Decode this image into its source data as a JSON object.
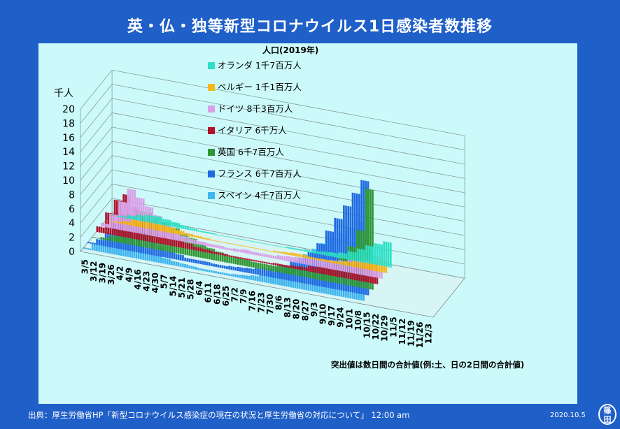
{
  "title": "英・仏・独等新型コロナウイルス1日感染者数推移",
  "footer": {
    "source": "出典：厚生労働省HP「新型コロナウイルス感染症の現在の状況と厚生労働省の対応について」 12:00 am",
    "date": "2020.10.5",
    "seal_top": "篠",
    "seal_bottom": "田"
  },
  "chart_data": {
    "type": "bar",
    "title": "英・仏・独等新型コロナウイルス1日感染者数推移",
    "ylabel": "千人",
    "ylim": [
      0,
      20
    ],
    "yticks": [
      0,
      2,
      4,
      6,
      8,
      10,
      12,
      14,
      16,
      18,
      20
    ],
    "legend_title": "人口(2019年)",
    "note": "突出値は数日間の合計値(例:土、日の2日間の合計値)",
    "x_labels": [
      "3/5",
      "3/12",
      "3/19",
      "3/26",
      "4/2",
      "4/9",
      "4/16",
      "4/23",
      "4/30",
      "5/7",
      "5/14",
      "5/21",
      "5/28",
      "6/4",
      "6/11",
      "6/18",
      "6/25",
      "7/2",
      "7/9",
      "7/16",
      "7/23",
      "7/30",
      "8/6",
      "8/13",
      "8/20",
      "8/27",
      "9/3",
      "9/10",
      "9/17",
      "9/24",
      "10/1",
      "10/8",
      "10/15",
      "10/22",
      "10/29",
      "11/5",
      "11/12",
      "11/19",
      "11/26",
      "12/3"
    ],
    "series": [
      {
        "name": "スペイン",
        "population": "4千7百万人",
        "color": "#3fb4ee",
        "values": [
          0.2,
          1,
          2,
          2.5,
          3,
          2.8,
          2,
          1.5,
          1,
          0.8,
          0.6,
          0.5,
          0.4,
          0.3,
          0.3,
          0.3,
          0.3,
          0.4,
          0.5,
          0.7,
          1,
          1.5,
          2,
          3,
          4,
          5,
          6,
          7,
          8,
          9,
          10,
          11,
          0,
          0,
          0,
          0,
          0,
          0,
          0,
          0
        ]
      },
      {
        "name": "フランス",
        "population": "6千7百万人",
        "color": "#1f6ae0",
        "values": [
          0.2,
          0.8,
          2,
          3.5,
          5,
          4,
          3,
          2,
          1.5,
          1,
          0.8,
          0.5,
          0.5,
          0.5,
          0.4,
          0.4,
          0.5,
          0.6,
          0.7,
          0.9,
          1.2,
          1.6,
          2,
          2.8,
          3.5,
          4.5,
          6,
          8,
          10,
          12,
          14,
          16,
          0,
          0,
          0,
          0,
          0,
          0,
          0,
          0
        ]
      },
      {
        "name": "英国",
        "population": "6千7百万人",
        "color": "#2e9632",
        "values": [
          0.1,
          0.3,
          0.8,
          2,
          4,
          5,
          5,
          4.5,
          4,
          3.5,
          3,
          2.5,
          2,
          1.6,
          1.3,
          1.1,
          1,
          0.9,
          0.8,
          0.8,
          0.8,
          0.9,
          1,
          1.1,
          1.2,
          1.4,
          2,
          2.8,
          4,
          5.5,
          8,
          14,
          0,
          0,
          0,
          0,
          0,
          0,
          0,
          0
        ]
      },
      {
        "name": "イタリア",
        "population": "6千万人",
        "color": "#b0102a",
        "values": [
          0.8,
          3,
          5,
          6,
          4.5,
          3.5,
          3,
          2.5,
          2,
          1.2,
          0.8,
          0.5,
          0.4,
          0.3,
          0.3,
          0.2,
          0.2,
          0.2,
          0.2,
          0.2,
          0.3,
          0.3,
          0.4,
          0.5,
          0.8,
          1.2,
          1.5,
          1.6,
          1.6,
          1.8,
          2.2,
          3,
          0,
          0,
          0,
          0,
          0,
          0,
          0,
          0
        ]
      },
      {
        "name": "ドイツ",
        "population": "8千3百万人",
        "color": "#d8a0e8",
        "values": [
          0.5,
          2,
          4,
          6,
          5,
          4,
          3,
          2,
          1.2,
          0.8,
          0.6,
          0.5,
          0.4,
          0.4,
          0.3,
          0.4,
          0.5,
          0.4,
          0.4,
          0.4,
          0.6,
          0.7,
          0.8,
          1,
          1.1,
          1.2,
          1.3,
          1.5,
          1.8,
          2,
          2.2,
          3,
          0,
          0,
          0,
          0,
          0,
          0,
          0,
          0
        ]
      },
      {
        "name": "ベルギー",
        "population": "1千1百万人",
        "color": "#f7b81a",
        "values": [
          0.05,
          0.2,
          0.5,
          0.9,
          1,
          1.2,
          1,
          0.8,
          0.6,
          0.4,
          0.3,
          0.2,
          0.1,
          0.1,
          0.1,
          0.1,
          0.1,
          0.1,
          0.1,
          0.2,
          0.3,
          0.4,
          0.4,
          0.3,
          0.3,
          0.3,
          0.4,
          0.6,
          0.8,
          1,
          1.3,
          1.8,
          0,
          0,
          0,
          0,
          0,
          0,
          0,
          0
        ]
      },
      {
        "name": "オランダ",
        "population": "1千7百万人",
        "color": "#2ee0c6",
        "values": [
          0.05,
          0.2,
          0.5,
          0.8,
          1,
          1.1,
          0.9,
          0.7,
          0.5,
          0.3,
          0.2,
          0.2,
          0.1,
          0.1,
          0.1,
          0.1,
          0.1,
          0.1,
          0.1,
          0.1,
          0.2,
          0.2,
          0.3,
          0.4,
          0.5,
          0.6,
          0.8,
          1.2,
          1.8,
          2.5,
          3,
          3.5,
          0,
          0,
          0,
          0,
          0,
          0,
          0,
          0
        ]
      }
    ]
  }
}
